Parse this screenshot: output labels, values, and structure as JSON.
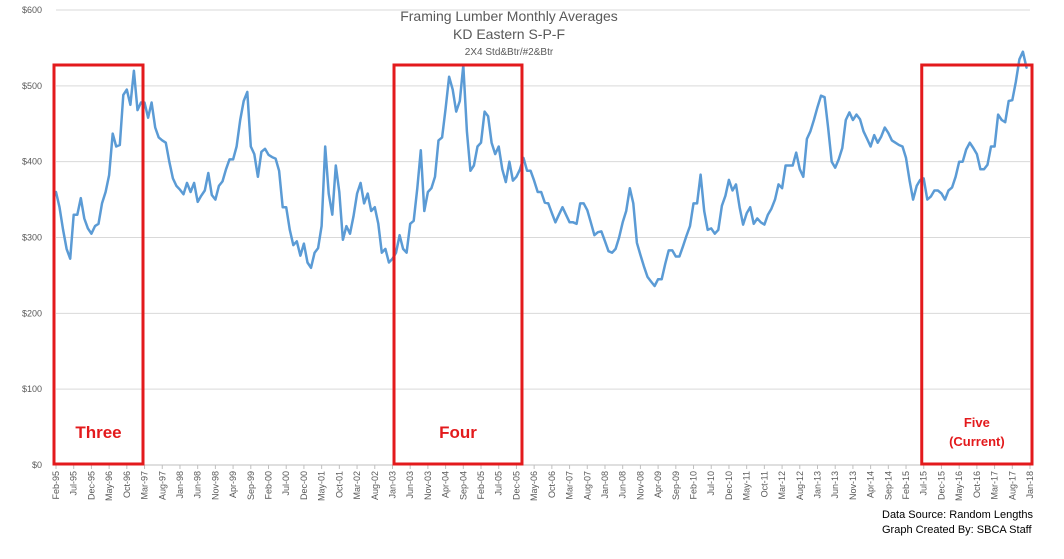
{
  "chart_data": {
    "type": "line",
    "title": "Framing Lumber Monthly Averages",
    "subtitle": "KD Eastern S-P-F",
    "subtitle2": "2X4 Std&Btr/#2&Btr",
    "ylim": [
      0,
      600
    ],
    "y_ticks": [
      "$0",
      "$100",
      "$200",
      "$300",
      "$400",
      "$500",
      "$600"
    ],
    "y_tick_values": [
      0,
      100,
      200,
      300,
      400,
      500,
      600
    ],
    "x_start": "Feb-95",
    "x_end": "Jan-18",
    "x_tick_labels": [
      "Feb-95",
      "Jul-95",
      "Dec-95",
      "May-96",
      "Oct-96",
      "Mar-97",
      "Aug-97",
      "Jan-98",
      "Jun-98",
      "Nov-98",
      "Apr-99",
      "Sep-99",
      "Feb-00",
      "Jul-00",
      "Dec-00",
      "May-01",
      "Oct-01",
      "Mar-02",
      "Aug-02",
      "Jan-03",
      "Jun-03",
      "Nov-03",
      "Apr-04",
      "Sep-04",
      "Feb-05",
      "Jul-05",
      "Dec-05",
      "May-06",
      "Oct-06",
      "Mar-07",
      "Aug-07",
      "Jan-08",
      "Jun-08",
      "Nov-08",
      "Apr-09",
      "Sep-09",
      "Feb-10",
      "Jul-10",
      "Dec-10",
      "May-11",
      "Oct-11",
      "Mar-12",
      "Aug-12",
      "Jan-13",
      "Jun-13",
      "Nov-13",
      "Apr-14",
      "Sep-14",
      "Feb-15",
      "Jul-15",
      "Dec-15",
      "May-16",
      "Oct-16",
      "Mar-17",
      "Aug-17",
      "Jan-18"
    ],
    "line_color": "#5b9bd5",
    "highlight_color": "#e31a1c",
    "series": [
      {
        "name": "",
        "start": "Feb-95",
        "values": [
          360,
          340,
          310,
          285,
          272,
          330,
          330,
          352,
          325,
          312,
          305,
          315,
          318,
          345,
          360,
          382,
          437,
          420,
          422,
          488,
          495,
          475,
          520,
          468,
          478,
          478,
          458,
          478,
          445,
          432,
          428,
          425,
          400,
          378,
          368,
          363,
          357,
          372,
          360,
          372,
          347,
          355,
          362,
          385,
          356,
          350,
          368,
          374,
          390,
          403,
          403,
          420,
          455,
          480,
          492,
          420,
          410,
          380,
          413,
          417,
          409,
          406,
          404,
          388,
          340,
          340,
          310,
          290,
          295,
          276,
          292,
          267,
          260,
          280,
          286,
          315,
          420,
          358,
          330,
          395,
          360,
          297,
          315,
          305,
          328,
          358,
          372,
          345,
          358,
          335,
          340,
          318,
          280,
          285,
          267,
          272,
          280,
          303,
          285,
          280,
          318,
          322,
          365,
          415,
          335,
          360,
          365,
          380,
          428,
          432,
          470,
          512,
          495,
          466,
          480,
          527,
          440,
          388,
          395,
          420,
          425,
          466,
          460,
          425,
          410,
          420,
          390,
          373,
          400,
          375,
          380,
          390,
          405,
          388,
          388,
          375,
          360,
          360,
          346,
          345,
          332,
          320,
          330,
          340,
          330,
          320,
          320,
          318,
          345,
          345,
          336,
          320,
          303,
          307,
          308,
          295,
          282,
          280,
          285,
          300,
          320,
          335,
          365,
          345,
          293,
          277,
          262,
          248,
          242,
          236,
          245,
          245,
          265,
          283,
          283,
          275,
          275,
          288,
          302,
          315,
          345,
          345,
          383,
          335,
          310,
          312,
          305,
          310,
          342,
          355,
          376,
          362,
          370,
          340,
          317,
          332,
          340,
          318,
          325,
          320,
          317,
          330,
          338,
          350,
          370,
          365,
          395,
          395,
          395,
          412,
          390,
          380,
          430,
          440,
          455,
          472,
          487,
          485,
          445,
          400,
          392,
          403,
          418,
          455,
          465,
          455,
          462,
          456,
          440,
          430,
          420,
          435,
          425,
          433,
          445,
          438,
          428,
          425,
          422,
          420,
          405,
          375,
          350,
          368,
          376,
          378,
          350,
          354,
          362,
          362,
          358,
          350,
          362,
          366,
          380,
          400,
          400,
          416,
          425,
          418,
          410,
          390,
          390,
          396,
          420,
          420,
          462,
          455,
          452,
          480,
          481,
          505,
          535,
          545,
          524
        ]
      }
    ],
    "highlight_boxes": [
      {
        "label": "Three",
        "from": "Feb-95",
        "to": "Feb-97"
      },
      {
        "label": "Four",
        "from": "Feb-03",
        "to": "Jan-06"
      },
      {
        "label": "Five",
        "label2": "(Current)",
        "from": "Jul-15",
        "to": "Jan-18"
      }
    ]
  },
  "footer": {
    "source": "Data Source: Random Lengths",
    "credit": "Graph Created By: SBCA Staff"
  }
}
